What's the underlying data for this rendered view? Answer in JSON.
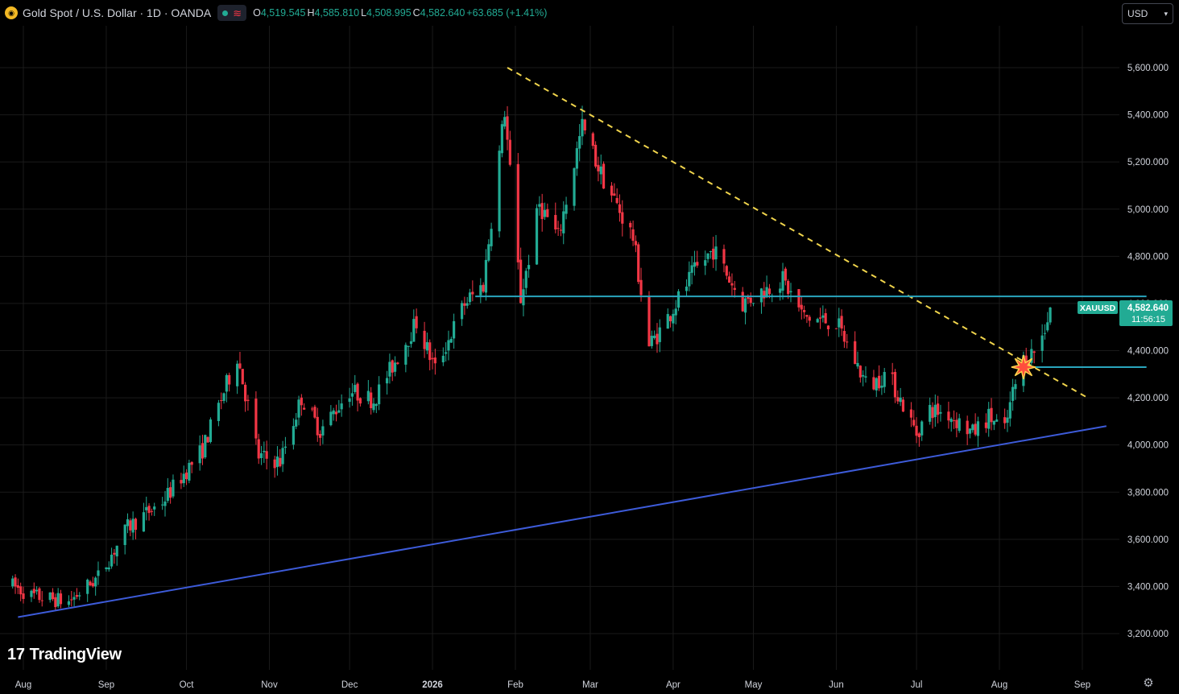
{
  "header": {
    "title": "Gold Spot / U.S. Dollar · 1D · OANDA",
    "logo_icon": "gold-coin-icon",
    "open_label": "O",
    "open": "4,519.545",
    "high_label": "H",
    "high": "4,585.810",
    "low_label": "L",
    "low": "4,508.995",
    "close_label": "C",
    "close": "4,582.640",
    "change": "+63.685 (+1.41%)"
  },
  "currency_select": {
    "value": "USD"
  },
  "brand": {
    "name": "TradingView",
    "mark": "17"
  },
  "colors": {
    "background": "#000000",
    "up": "#22ab94",
    "down": "#f23645",
    "grid": "#1a1a1a",
    "support_line": "#3d5bd9",
    "level_line": "#29a5bd",
    "trend_dashed": "#f0d44c",
    "price_tag": "#22ab94"
  },
  "chart_data": {
    "type": "candlestick",
    "symbol": "XAUUSD",
    "timeframe": "1D",
    "y_axis": {
      "range": [
        3090,
        5840
      ],
      "ticks": [
        "5,600.000",
        "5,400.000",
        "5,200.000",
        "5,000.000",
        "4,800.000",
        "4,600.000",
        "4,400.000",
        "4,200.000",
        "4,000.000",
        "3,800.000",
        "3,600.000",
        "3,400.000",
        "3,200.000"
      ],
      "tick_values": [
        5600,
        5400,
        5200,
        5000,
        4800,
        4600,
        4400,
        4200,
        4000,
        3800,
        3600,
        3400,
        3200
      ]
    },
    "x_axis": {
      "labels": [
        "Aug",
        "Sep",
        "Oct",
        "Nov",
        "Dec",
        "2026",
        "Feb",
        "Mar",
        "Apr",
        "May",
        "Jun",
        "Jul",
        "Aug",
        "Sep"
      ],
      "dates": [
        "2025-08-01",
        "2025-09-01",
        "2025-10-01",
        "2025-11-01",
        "2025-12-01",
        "2026-01-01",
        "2026-02-01",
        "2026-03-01",
        "2026-04-01",
        "2026-05-01",
        "2026-06-01",
        "2026-07-01",
        "2026-08-01",
        "2026-09-01"
      ]
    },
    "grid": true,
    "price_tag": {
      "symbol": "XAUUSD",
      "price": "4,582.640",
      "countdown": "11:56:15"
    },
    "anchors": [
      [
        "2025-07-27",
        3410
      ],
      [
        "2025-08-04",
        3360
      ],
      [
        "2025-08-18",
        3335
      ],
      [
        "2025-08-29",
        3440
      ],
      [
        "2025-09-09",
        3650
      ],
      [
        "2025-09-22",
        3760
      ],
      [
        "2025-10-07",
        3980
      ],
      [
        "2025-10-20",
        4380
      ],
      [
        "2025-10-28",
        3950
      ],
      [
        "2025-11-05",
        3930
      ],
      [
        "2025-11-13",
        4200
      ],
      [
        "2025-11-20",
        4060
      ],
      [
        "2025-12-01",
        4230
      ],
      [
        "2025-12-10",
        4190
      ],
      [
        "2025-12-26",
        4520
      ],
      [
        "2026-01-02",
        4320
      ],
      [
        "2026-01-13",
        4600
      ],
      [
        "2026-01-20",
        4680
      ],
      [
        "2026-01-28",
        5420
      ],
      [
        "2026-02-03",
        4620
      ],
      [
        "2026-02-10",
        5020
      ],
      [
        "2026-02-17",
        4880
      ],
      [
        "2026-02-26",
        5350
      ],
      [
        "2026-03-05",
        5150
      ],
      [
        "2026-03-17",
        4880
      ],
      [
        "2026-03-23",
        4420
      ],
      [
        "2026-03-28",
        4500
      ],
      [
        "2026-04-08",
        4720
      ],
      [
        "2026-04-16",
        4830
      ],
      [
        "2026-04-27",
        4600
      ],
      [
        "2026-05-04",
        4650
      ],
      [
        "2026-05-12",
        4700
      ],
      [
        "2026-05-20",
        4540
      ],
      [
        "2026-06-01",
        4520
      ],
      [
        "2026-06-13",
        4240
      ],
      [
        "2026-06-20",
        4310
      ],
      [
        "2026-07-01",
        4050
      ],
      [
        "2026-07-06",
        4150
      ],
      [
        "2026-07-13",
        4130
      ],
      [
        "2026-07-22",
        4050
      ],
      [
        "2026-07-28",
        4120
      ],
      [
        "2026-08-03",
        4060
      ],
      [
        "2026-08-06",
        4220
      ],
      [
        "2026-08-10",
        4360
      ],
      [
        "2026-08-16",
        4420
      ],
      [
        "2026-08-20",
        4582
      ]
    ],
    "last_candle": {
      "open": 4519.545,
      "high": 4585.81,
      "low": 4508.995,
      "close": 4582.64
    },
    "drawings": [
      {
        "type": "trendline",
        "style": "solid",
        "color": "#3d5bd9",
        "from": [
          "2025-07-30",
          3270
        ],
        "to": [
          "2026-09-10",
          4080
        ]
      },
      {
        "type": "trendline",
        "style": "dashed",
        "color": "#f0d44c",
        "from": [
          "2026-01-29",
          5600
        ],
        "to": [
          "2026-09-03",
          4200
        ]
      },
      {
        "type": "horizontal_segment",
        "color": "#29a5bd",
        "from": [
          "2026-01-17",
          4630
        ],
        "to": [
          "2026-09-25",
          4630
        ]
      },
      {
        "type": "horizontal_segment",
        "color": "#29a5bd",
        "from": [
          "2026-08-11",
          4330
        ],
        "to": [
          "2026-09-25",
          4330
        ]
      }
    ],
    "markers": [
      {
        "type": "breakout-star-icon",
        "at": [
          "2026-08-10",
          4330
        ]
      }
    ]
  }
}
